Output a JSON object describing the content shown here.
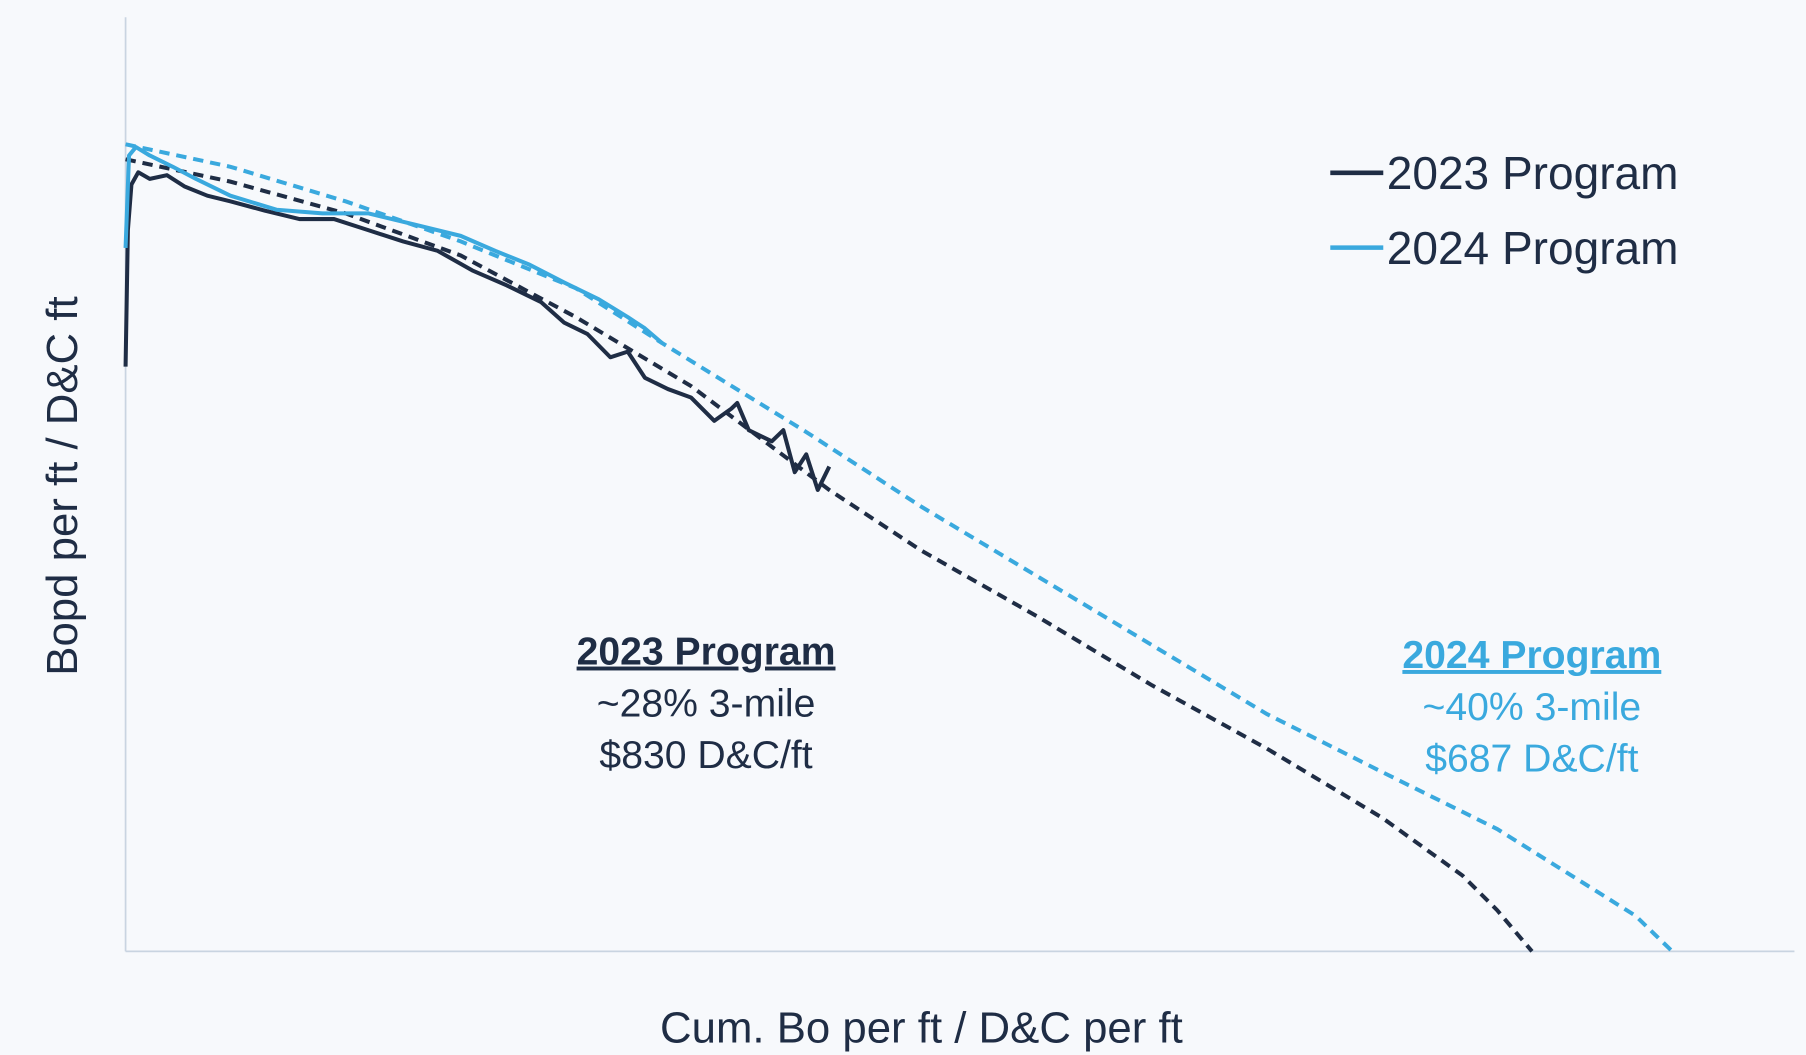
{
  "chart_data": {
    "type": "line",
    "x_label": "Cum. Bo per ft / D&C per ft",
    "y_label": "Bopd per ft / D&C ft",
    "xlim": [
      0,
      100
    ],
    "ylim": [
      0,
      100
    ],
    "legend": "upper right",
    "series": [
      {
        "name": "2023 Program",
        "color": "#1f2d45",
        "x": [
          0,
          0.14,
          0.35,
          0.76,
          1.45,
          2.48,
          3.52,
          4.9,
          6.27,
          8.35,
          10.42,
          12.49,
          14.56,
          16.63,
          18.7,
          20.77,
          22.84,
          24.91,
          26.29,
          27.67,
          29.05,
          30.09,
          31.12,
          32.5,
          33.88,
          35.27,
          36.3,
          36.65,
          37.34,
          38.72,
          39.41,
          40.1,
          40.79,
          41.48,
          42.17
        ],
        "values": [
          62.6,
          77.2,
          82.1,
          83.4,
          82.7,
          83.1,
          81.9,
          80.9,
          80.3,
          79.3,
          78.4,
          78.4,
          77.2,
          76.0,
          75.0,
          72.9,
          71.3,
          69.5,
          67.3,
          66.1,
          63.6,
          64.2,
          61.4,
          60.2,
          59.3,
          56.8,
          58.1,
          58.7,
          55.8,
          54.6,
          55.8,
          51.3,
          53.2,
          49.4,
          51.9
        ],
        "forecast": {
          "x": [
            0,
            6.28,
            13.18,
            20.08,
            26.98,
            33.89,
            42.17,
            47.69,
            54.59,
            61.49,
            68.39,
            75.29,
            80.12,
            82.19,
            84.27
          ],
          "values": [
            84.8,
            82.4,
            79.0,
            74.5,
            67.9,
            60.5,
            49.4,
            42.9,
            35.9,
            28.5,
            21.7,
            14.3,
            8.1,
            4.4,
            0
          ]
        }
      },
      {
        "name": "2024 Program",
        "color": "#3aa9de",
        "x": [
          0,
          0.21,
          0.62,
          1.45,
          2.83,
          4.21,
          6.28,
          9.04,
          11.8,
          14.56,
          17.32,
          20.08,
          22.15,
          24.22,
          26.29,
          28.36,
          30.09,
          31.12,
          32.16
        ],
        "values": [
          75.3,
          85.2,
          86.1,
          85.2,
          84.0,
          82.7,
          80.9,
          79.4,
          79.0,
          79.0,
          77.8,
          76.6,
          75.0,
          73.5,
          71.6,
          69.8,
          67.9,
          66.7,
          65.1
        ],
        "forecast": {
          "x": [
            0,
            6.28,
            13.18,
            20.08,
            26.98,
            32.16,
            40.79,
            47.69,
            54.59,
            61.49,
            68.39,
            75.29,
            82.19,
            87.72,
            90.48,
            92.68
          ],
          "values": [
            86.4,
            84.0,
            80.3,
            76.0,
            71.0,
            65.1,
            55.6,
            47.6,
            40.2,
            32.8,
            25.4,
            19.2,
            13.1,
            6.9,
            3.8,
            0
          ]
        }
      }
    ],
    "annotations": [
      {
        "lines": [
          "2023 Program",
          "~28% 3-mile",
          "$830 D&C/ft"
        ],
        "color": "#1f2d45"
      },
      {
        "lines": [
          "2024 Program",
          "~40% 3-mile",
          "$687 D&C/ft"
        ],
        "color": "#3aa9de"
      }
    ]
  }
}
